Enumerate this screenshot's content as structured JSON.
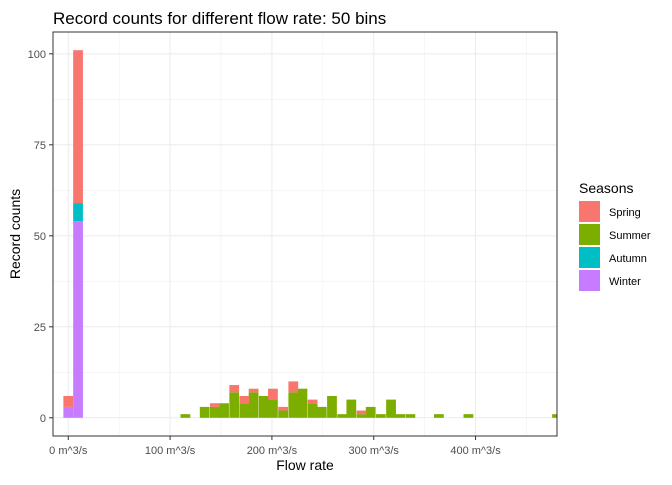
{
  "chart_data": {
    "type": "bar",
    "stacked": true,
    "title": "Record counts for different flow rate: 50 bins",
    "xlabel": "Flow rate",
    "ylabel": "Record counts",
    "xlim": [
      -15,
      480
    ],
    "ylim": [
      -5,
      106
    ],
    "x_ticks": [
      {
        "value": 0,
        "label": "0 m^3/s"
      },
      {
        "value": 100,
        "label": "100 m^3/s"
      },
      {
        "value": 200,
        "label": "200 m^3/s"
      },
      {
        "value": 300,
        "label": "300 m^3/s"
      },
      {
        "value": 400,
        "label": "400 m^3/s"
      }
    ],
    "y_ticks": [
      {
        "value": 0,
        "label": "0"
      },
      {
        "value": 25,
        "label": "25"
      },
      {
        "value": 50,
        "label": "50"
      },
      {
        "value": 75,
        "label": "75"
      },
      {
        "value": 100,
        "label": "100"
      }
    ],
    "grid": true,
    "bin_width": 9.6,
    "legend": {
      "title": "Seasons",
      "position": "right"
    },
    "series": [
      {
        "name": "Winter",
        "color": "#C77CFF",
        "stack_order": 0,
        "bins": [
          {
            "x": 0,
            "y": 3
          },
          {
            "x": 9.6,
            "y": 54
          }
        ]
      },
      {
        "name": "Autumn",
        "color": "#00BFC4",
        "stack_order": 1,
        "bins": [
          {
            "x": 9.6,
            "y": 5
          }
        ]
      },
      {
        "name": "Summer",
        "color": "#7CAE00",
        "stack_order": 2,
        "bins": [
          {
            "x": 115,
            "y": 1
          },
          {
            "x": 134,
            "y": 3
          },
          {
            "x": 144,
            "y": 3
          },
          {
            "x": 153,
            "y": 4
          },
          {
            "x": 163,
            "y": 7
          },
          {
            "x": 173,
            "y": 4
          },
          {
            "x": 182,
            "y": 7
          },
          {
            "x": 192,
            "y": 6
          },
          {
            "x": 201,
            "y": 5
          },
          {
            "x": 211,
            "y": 2
          },
          {
            "x": 221,
            "y": 7
          },
          {
            "x": 230,
            "y": 8
          },
          {
            "x": 240,
            "y": 4
          },
          {
            "x": 249,
            "y": 3
          },
          {
            "x": 259,
            "y": 6
          },
          {
            "x": 269,
            "y": 1
          },
          {
            "x": 278,
            "y": 5
          },
          {
            "x": 288,
            "y": 1
          },
          {
            "x": 297,
            "y": 3
          },
          {
            "x": 307,
            "y": 1
          },
          {
            "x": 317,
            "y": 5
          },
          {
            "x": 326,
            "y": 1
          },
          {
            "x": 336,
            "y": 1
          },
          {
            "x": 364,
            "y": 1
          },
          {
            "x": 393,
            "y": 1
          },
          {
            "x": 480,
            "y": 1
          }
        ]
      },
      {
        "name": "Spring",
        "color": "#F8766D",
        "stack_order": 3,
        "bins": [
          {
            "x": 0,
            "y": 3
          },
          {
            "x": 9.6,
            "y": 42
          },
          {
            "x": 144,
            "y": 1
          },
          {
            "x": 163,
            "y": 2
          },
          {
            "x": 173,
            "y": 2
          },
          {
            "x": 182,
            "y": 1
          },
          {
            "x": 201,
            "y": 3
          },
          {
            "x": 211,
            "y": 1
          },
          {
            "x": 221,
            "y": 3
          },
          {
            "x": 240,
            "y": 1
          },
          {
            "x": 288,
            "y": 1
          }
        ]
      }
    ]
  }
}
